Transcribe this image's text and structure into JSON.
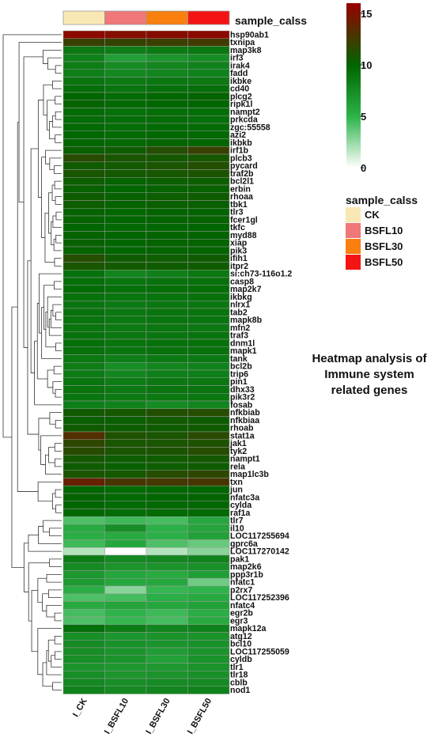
{
  "chart_data": {
    "type": "heatmap",
    "annotation_title": "sample_calss",
    "annotation_legend": [
      {
        "label": "CK",
        "color": "#FAE8B4"
      },
      {
        "label": "BSFL10",
        "color": "#F07878"
      },
      {
        "label": "BSFL30",
        "color": "#F97F0F"
      },
      {
        "label": "BSFL50",
        "color": "#F51414"
      }
    ],
    "columns": [
      "I_CK",
      "I_BSFL10",
      "I_BSFL30",
      "I_BSFL50"
    ],
    "colorbar": {
      "ticks": [
        0,
        5,
        10,
        15
      ],
      "range": [
        0,
        16
      ],
      "colors": [
        "#FFFFFF",
        "#2DB34A",
        "#006600",
        "#990000"
      ]
    },
    "rows": [
      {
        "gene": "hsp90ab1",
        "values": [
          15.5,
          15.2,
          15.3,
          15.4
        ]
      },
      {
        "gene": "txnipa",
        "values": [
          12.2,
          12.0,
          12.3,
          12.6
        ]
      },
      {
        "gene": "map3k8",
        "values": [
          8.8,
          8.5,
          8.7,
          8.9
        ]
      },
      {
        "gene": "irf3",
        "values": [
          8.2,
          6.3,
          7.0,
          7.5
        ]
      },
      {
        "gene": "irak4",
        "values": [
          8.5,
          7.6,
          7.9,
          8.2
        ]
      },
      {
        "gene": "fadd",
        "values": [
          8.4,
          7.8,
          8.0,
          8.2
        ]
      },
      {
        "gene": "ikbke",
        "values": [
          9.0,
          8.7,
          8.9,
          8.8
        ]
      },
      {
        "gene": "cd40",
        "values": [
          9.4,
          9.0,
          9.3,
          9.4
        ]
      },
      {
        "gene": "plcg2",
        "values": [
          10.0,
          9.6,
          9.9,
          10.1
        ]
      },
      {
        "gene": "ripk1l",
        "values": [
          10.2,
          9.8,
          10.0,
          10.0
        ]
      },
      {
        "gene": "nampt2",
        "values": [
          9.6,
          9.3,
          9.5,
          9.5
        ]
      },
      {
        "gene": "prkcda",
        "values": [
          9.6,
          9.5,
          9.6,
          9.4
        ]
      },
      {
        "gene": "zgc:55558",
        "values": [
          9.8,
          9.5,
          9.7,
          9.6
        ]
      },
      {
        "gene": "azi2",
        "values": [
          9.9,
          9.7,
          9.9,
          9.8
        ]
      },
      {
        "gene": "ikbkb",
        "values": [
          10.0,
          9.8,
          10.1,
          10.0
        ]
      },
      {
        "gene": "irf1b",
        "values": [
          10.4,
          10.6,
          11.4,
          12.2
        ]
      },
      {
        "gene": "plcb3",
        "values": [
          11.6,
          11.0,
          10.8,
          10.9
        ]
      },
      {
        "gene": "pycard",
        "values": [
          10.6,
          10.7,
          11.0,
          11.4
        ]
      },
      {
        "gene": "traf2b",
        "values": [
          11.0,
          10.8,
          10.9,
          11.1
        ]
      },
      {
        "gene": "bcl2l1",
        "values": [
          10.5,
          10.2,
          10.4,
          10.5
        ]
      },
      {
        "gene": "erbin",
        "values": [
          10.3,
          10.0,
          10.2,
          10.3
        ]
      },
      {
        "gene": "rhoaa",
        "values": [
          10.6,
          10.3,
          10.5,
          10.6
        ]
      },
      {
        "gene": "tbk1",
        "values": [
          10.5,
          10.2,
          10.4,
          10.4
        ]
      },
      {
        "gene": "tlr3",
        "values": [
          10.2,
          9.9,
          10.1,
          10.1
        ]
      },
      {
        "gene": "fcer1gl",
        "values": [
          10.2,
          10.0,
          10.1,
          10.2
        ]
      },
      {
        "gene": "tkfc",
        "values": [
          10.0,
          9.8,
          9.9,
          10.0
        ]
      },
      {
        "gene": "myd88",
        "values": [
          10.2,
          10.0,
          10.1,
          10.1
        ]
      },
      {
        "gene": "xiap",
        "values": [
          10.3,
          10.0,
          10.2,
          10.2
        ]
      },
      {
        "gene": "pik3",
        "values": [
          10.2,
          10.0,
          10.1,
          10.1
        ]
      },
      {
        "gene": "ifih1",
        "values": [
          11.4,
          10.6,
          10.5,
          10.6
        ]
      },
      {
        "gene": "itpr2",
        "values": [
          11.0,
          10.7,
          10.6,
          10.6
        ]
      },
      {
        "gene": "si:ch73-116o1.2",
        "values": [
          9.2,
          8.0,
          8.3,
          8.8
        ]
      },
      {
        "gene": "casp8",
        "values": [
          9.4,
          9.0,
          9.2,
          9.3
        ]
      },
      {
        "gene": "map2k7",
        "values": [
          9.6,
          9.3,
          9.5,
          9.5
        ]
      },
      {
        "gene": "ikbkg",
        "values": [
          9.2,
          9.0,
          9.1,
          9.2
        ]
      },
      {
        "gene": "nlrx1",
        "values": [
          9.0,
          8.7,
          8.9,
          8.9
        ]
      },
      {
        "gene": "tab2",
        "values": [
          9.2,
          8.9,
          9.1,
          9.1
        ]
      },
      {
        "gene": "mapk8b",
        "values": [
          9.1,
          8.8,
          9.0,
          9.0
        ]
      },
      {
        "gene": "mfn2",
        "values": [
          9.0,
          8.7,
          8.9,
          8.8
        ]
      },
      {
        "gene": "traf3",
        "values": [
          9.2,
          8.9,
          9.0,
          9.1
        ]
      },
      {
        "gene": "dnm1l",
        "values": [
          9.4,
          9.1,
          9.3,
          9.3
        ]
      },
      {
        "gene": "mapk1",
        "values": [
          9.3,
          9.0,
          9.2,
          9.2
        ]
      },
      {
        "gene": "tank",
        "values": [
          8.8,
          8.4,
          8.7,
          8.7
        ]
      },
      {
        "gene": "bcl2b",
        "values": [
          8.5,
          7.5,
          8.0,
          8.2
        ]
      },
      {
        "gene": "trip6",
        "values": [
          8.6,
          7.9,
          8.3,
          8.4
        ]
      },
      {
        "gene": "pin1",
        "values": [
          9.0,
          8.6,
          8.8,
          8.8
        ]
      },
      {
        "gene": "dhx33",
        "values": [
          9.1,
          8.8,
          9.0,
          9.0
        ]
      },
      {
        "gene": "pik3r2",
        "values": [
          9.0,
          8.7,
          8.8,
          8.9
        ]
      },
      {
        "gene": "fosab",
        "values": [
          8.4,
          8.2,
          7.6,
          8.0
        ]
      },
      {
        "gene": "nfkbiab",
        "values": [
          10.7,
          10.8,
          11.3,
          11.5
        ]
      },
      {
        "gene": "nfkbiaa",
        "values": [
          10.4,
          10.4,
          10.7,
          10.6
        ]
      },
      {
        "gene": "rhoab",
        "values": [
          10.6,
          10.5,
          10.6,
          10.6
        ]
      },
      {
        "gene": "stat1a",
        "values": [
          13.2,
          11.2,
          11.0,
          11.6
        ]
      },
      {
        "gene": "jak1",
        "values": [
          11.8,
          11.0,
          11.0,
          11.2
        ]
      },
      {
        "gene": "tyk2",
        "values": [
          11.6,
          11.0,
          11.1,
          11.5
        ]
      },
      {
        "gene": "nampt1",
        "values": [
          10.8,
          10.5,
          10.6,
          10.8
        ]
      },
      {
        "gene": "rela",
        "values": [
          10.6,
          10.3,
          10.5,
          10.6
        ]
      },
      {
        "gene": "map1lc3b",
        "values": [
          11.0,
          10.8,
          11.5,
          11.8
        ]
      },
      {
        "gene": "txn",
        "values": [
          14.0,
          12.8,
          12.7,
          12.8
        ]
      },
      {
        "gene": "jun",
        "values": [
          10.0,
          9.7,
          9.9,
          10.0
        ]
      },
      {
        "gene": "nfatc3a",
        "values": [
          10.2,
          9.8,
          10.0,
          10.1
        ]
      },
      {
        "gene": "cylda",
        "values": [
          10.0,
          9.7,
          9.8,
          9.9
        ]
      },
      {
        "gene": "raf1a",
        "values": [
          9.9,
          9.6,
          9.7,
          9.8
        ]
      },
      {
        "gene": "tlr7",
        "values": [
          4.2,
          4.6,
          4.4,
          5.8
        ]
      },
      {
        "gene": "il10",
        "values": [
          5.6,
          7.4,
          5.2,
          6.0
        ]
      },
      {
        "gene": "LOC117255694",
        "values": [
          5.4,
          5.6,
          5.2,
          6.2
        ]
      },
      {
        "gene": "gprc6a",
        "values": [
          4.6,
          5.8,
          4.2,
          3.6
        ]
      },
      {
        "gene": "LOC117270142",
        "values": [
          1.8,
          0.0,
          1.8,
          2.8
        ]
      },
      {
        "gene": "pak1",
        "values": [
          8.6,
          7.8,
          7.9,
          8.1
        ]
      },
      {
        "gene": "map2k6",
        "values": [
          7.6,
          7.0,
          7.0,
          7.2
        ]
      },
      {
        "gene": "ppp3r1b",
        "values": [
          6.8,
          5.9,
          5.6,
          6.3
        ]
      },
      {
        "gene": "nfatc1",
        "values": [
          6.6,
          5.8,
          5.8,
          3.4
        ]
      },
      {
        "gene": "p2rx7",
        "values": [
          5.4,
          2.8,
          4.8,
          5.0
        ]
      },
      {
        "gene": "LOC117252396",
        "values": [
          4.2,
          4.4,
          5.3,
          5.6
        ]
      },
      {
        "gene": "nfatc4",
        "values": [
          5.6,
          6.0,
          5.8,
          6.2
        ]
      },
      {
        "gene": "egr2b",
        "values": [
          4.4,
          5.0,
          4.6,
          5.4
        ]
      },
      {
        "gene": "egr3",
        "values": [
          4.2,
          4.8,
          4.4,
          5.6
        ]
      },
      {
        "gene": "mapk12a",
        "values": [
          9.4,
          8.6,
          8.0,
          8.2
        ]
      },
      {
        "gene": "atg12",
        "values": [
          7.4,
          6.9,
          7.1,
          7.1
        ]
      },
      {
        "gene": "bcl10",
        "values": [
          7.6,
          7.2,
          7.0,
          7.2
        ]
      },
      {
        "gene": "LOC117255059",
        "values": [
          7.5,
          7.0,
          6.5,
          7.0
        ]
      },
      {
        "gene": "cyldb",
        "values": [
          7.4,
          7.1,
          6.2,
          7.1
        ]
      },
      {
        "gene": "tlr1",
        "values": [
          7.0,
          6.8,
          6.7,
          7.1
        ]
      },
      {
        "gene": "tlr18",
        "values": [
          7.4,
          7.0,
          7.1,
          7.3
        ]
      },
      {
        "gene": "cblb",
        "values": [
          7.8,
          7.4,
          7.6,
          7.7
        ]
      },
      {
        "gene": "nod1",
        "values": [
          8.2,
          7.8,
          8.0,
          8.2
        ]
      }
    ]
  },
  "annotation_text": [
    "Heatmap analysis of",
    "Immune system",
    "related genes"
  ]
}
